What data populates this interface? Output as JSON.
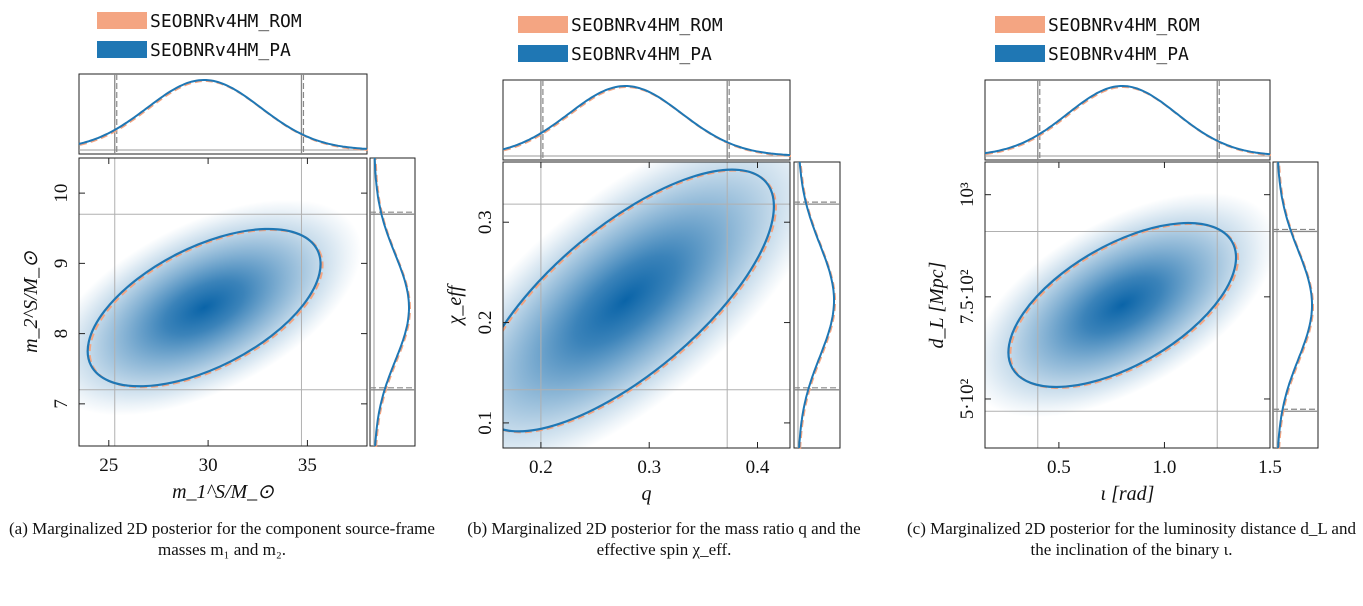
{
  "legend": {
    "rom": "SEOBNRv4HM_ROM",
    "pa": "SEOBNRv4HM_PA",
    "rom_color": "#f4a582",
    "pa_color": "#1f77b4",
    "density_color": "#0a64a8"
  },
  "chart_data": [
    {
      "type": "scatter",
      "subtype": "corner-2d-posterior",
      "xlabel": "m_1^S/M_⊙",
      "ylabel": "m_2^S/M_⊙",
      "xlim": [
        23.5,
        38
      ],
      "ylim": [
        6.4,
        10.5
      ],
      "xticks": [
        25,
        30,
        35
      ],
      "yticks": [
        7,
        8,
        9,
        10
      ],
      "xtick_labels": [
        "25",
        "30",
        "35"
      ],
      "ytick_labels": [
        "7",
        "8",
        "9",
        "10"
      ],
      "peak": [
        29.8,
        8.37
      ],
      "contour": {
        "semi_major": 5.7,
        "semi_minor": 0.55,
        "angle_deg": -27
      },
      "x_interval": [
        25.3,
        34.7
      ],
      "y_interval": [
        7.2,
        9.7
      ],
      "series": [
        {
          "name": "SEOBNRv4HM_ROM"
        },
        {
          "name": "SEOBNRv4HM_PA"
        }
      ],
      "caption": "(a) Marginalized 2D posterior for the component source-frame masses m₁ and m₂."
    },
    {
      "type": "scatter",
      "subtype": "corner-2d-posterior",
      "xlabel": "q",
      "ylabel": "χ_eff",
      "xlim": [
        0.165,
        0.43
      ],
      "ylim": [
        0.075,
        0.36
      ],
      "xticks": [
        0.2,
        0.3,
        0.4
      ],
      "yticks": [
        0.1,
        0.2,
        0.3
      ],
      "xtick_labels": [
        "0.2",
        "0.3",
        "0.4"
      ],
      "ytick_labels": [
        "0.1",
        "0.2",
        "0.3"
      ],
      "peak": [
        0.278,
        0.222
      ],
      "contour": {
        "semi_major": 0.13,
        "semi_minor": 0.055,
        "angle_deg": -40
      },
      "x_interval": [
        0.2,
        0.372
      ],
      "y_interval": [
        0.133,
        0.318
      ],
      "series": [
        {
          "name": "SEOBNRv4HM_ROM"
        },
        {
          "name": "SEOBNRv4HM_PA"
        }
      ],
      "caption": "(b) Marginalized 2D posterior for the mass ratio q and the effective spin χ_eff."
    },
    {
      "type": "scatter",
      "subtype": "corner-2d-posterior",
      "xlabel": "ι [rad]",
      "ylabel": "d_L [Mpc]",
      "xlim": [
        0.15,
        1.5
      ],
      "ylim": [
        380,
        1080
      ],
      "xticks": [
        0.5,
        1.0,
        1.5
      ],
      "yticks": [
        500,
        750,
        1000
      ],
      "xtick_labels": [
        "0.5",
        "1.0",
        "1.5"
      ],
      "ytick_labels": [
        "5·10²",
        "7.5·10²",
        "10³"
      ],
      "peak": [
        0.8,
        730
      ],
      "contour": {
        "semi_major": 0.52,
        "semi_minor": 0.23,
        "angle_deg": -30
      },
      "x_interval": [
        0.4,
        1.25
      ],
      "y_interval": [
        470,
        910
      ],
      "series": [
        {
          "name": "SEOBNRv4HM_ROM"
        },
        {
          "name": "SEOBNRv4HM_PA"
        }
      ],
      "caption": "(c) Marginalized 2D posterior for the luminosity distance d_L and the inclination of the binary ι."
    }
  ]
}
